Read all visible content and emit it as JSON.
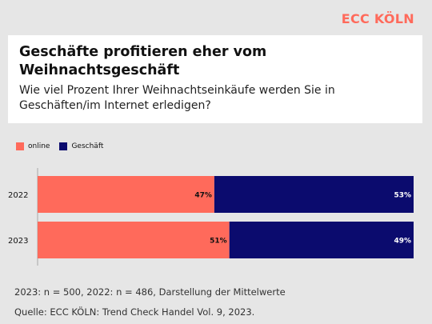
{
  "brand": "ECC KÖLN",
  "footnote": "2023: n = 500, 2022: n = 486, Darstellung der Mittelwerte",
  "source": "Quelle: ECC KÖLN: Trend Check Handel Vol. 9, 2023.",
  "colors": {
    "online": "#ff6a5b",
    "geschaeft": "#0b0b6e"
  },
  "chart_data": {
    "type": "bar",
    "orientation": "horizontal",
    "stacked": true,
    "title": "Geschäfte profitieren eher vom Weihnachtsgeschäft",
    "subtitle": "Wie viel Prozent Ihrer Weihnachtseinkäufe werden Sie in Geschäften/im Internet erledigen?",
    "categories": [
      "2022",
      "2023"
    ],
    "series": [
      {
        "name": "online",
        "values": [
          47,
          51
        ],
        "labels": [
          "47%",
          "51%"
        ]
      },
      {
        "name": "Geschäft",
        "values": [
          53,
          49
        ],
        "labels": [
          "53%",
          "49%"
        ]
      }
    ],
    "xlim": [
      0,
      100
    ],
    "grid": false,
    "legend_position": "top-left"
  }
}
